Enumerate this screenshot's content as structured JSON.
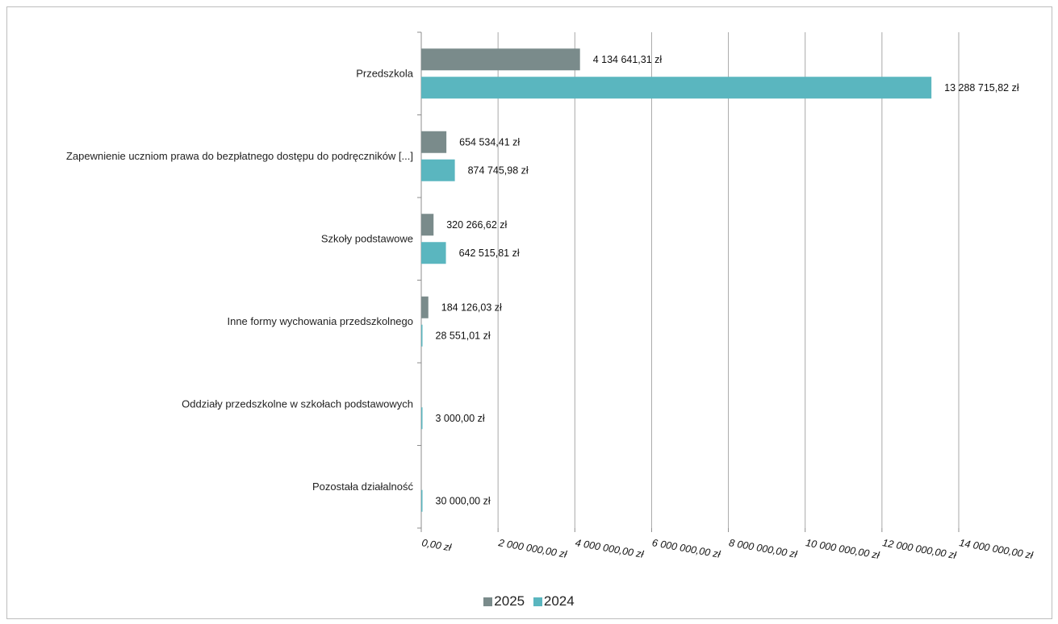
{
  "chart_data": {
    "type": "bar",
    "orientation": "horizontal",
    "categories": [
      "Przedszkola",
      "Zapewnienie uczniom prawa do bezpłatnego dostępu do podręczników [...]",
      "Szkoły podstawowe",
      "Inne formy wychowania przedszkolnego",
      "Oddziały przedszkolne w szkołach podstawowych",
      "Pozostała działalność"
    ],
    "series": [
      {
        "name": "2025",
        "color": "#7a8b8b",
        "values": [
          4134641.31,
          654534.41,
          320266.62,
          184126.03,
          null,
          null
        ],
        "labels": [
          "4 134 641,31 zł",
          "654 534,41 zł",
          "320 266,62 zł",
          "184 126,03 zł",
          "",
          ""
        ]
      },
      {
        "name": "2024",
        "color": "#5ab6bf",
        "values": [
          13288715.82,
          874745.98,
          642515.81,
          28551.01,
          3000.0,
          30000.0
        ],
        "labels": [
          "13 288 715,82 zł",
          "874 745,98 zł",
          "642 515,81 zł",
          "28 551,01 zł",
          "3 000,00 zł",
          "30 000,00 zł"
        ]
      }
    ],
    "xlim": [
      0,
      14000000
    ],
    "x_ticks": [
      0,
      2000000,
      4000000,
      6000000,
      8000000,
      10000000,
      12000000,
      14000000
    ],
    "x_tick_labels": [
      "0,00 zł",
      "2 000 000,00 zł",
      "4 000 000,00 zł",
      "6 000 000,00 zł",
      "8 000 000,00 zł",
      "10 000 000,00 zł",
      "12 000 000,00 zł",
      "14 000 000,00 zł"
    ],
    "grid": true,
    "legend_position": "bottom-center",
    "title": "",
    "xlabel": "",
    "ylabel": ""
  }
}
